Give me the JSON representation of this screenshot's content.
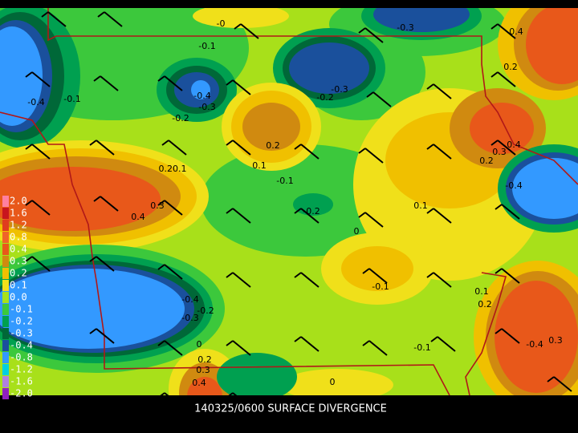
{
  "title": "140325/0600 SURFACE DIVERGENCE",
  "legend": [
    {
      "label": "2.0",
      "color": "#ff7f9f"
    },
    {
      "label": "1.6",
      "color": "#c8141e"
    },
    {
      "label": "1.2",
      "color": "#e03c1e"
    },
    {
      "label": "0.8",
      "color": "#f06428"
    },
    {
      "label": "0.4",
      "color": "#e8581a"
    },
    {
      "label": "0.3",
      "color": "#d08a10"
    },
    {
      "label": "0.2",
      "color": "#f0c000"
    },
    {
      "label": "0.1",
      "color": "#f0e01a"
    },
    {
      "label": "0.0",
      "color": "#a8e01a"
    },
    {
      "label": "-0.1",
      "color": "#3cc83c"
    },
    {
      "label": "-0.2",
      "color": "#00a050"
    },
    {
      "label": "-0.3",
      "color": "#006838"
    },
    {
      "label": "-0.4",
      "color": "#1a509c"
    },
    {
      "label": "-0.8",
      "color": "#3399ff"
    },
    {
      "label": "-1.2",
      "color": "#00d0e0"
    },
    {
      "label": "-1.6",
      "color": "#b080e0"
    },
    {
      "label": "-2.0",
      "color": "#9020c0"
    }
  ],
  "contour_labels": [
    "-0.3",
    "0.4",
    "-0.1",
    "0.2",
    "-0.4",
    "-0.1",
    "-0.4",
    "-0.3",
    "-0.3",
    "-0.2",
    "-0.2",
    "0.2",
    "0.1",
    "0.20.1",
    "-0.1",
    "-0.2",
    "0.4",
    "0.3",
    "0",
    "0.1",
    "-0.1",
    "0.3",
    "0.4",
    "0.2",
    "-0.4",
    "-0.3",
    "-0.2",
    "0.1",
    "0.2",
    "-0.4",
    "0.3",
    "-0.1",
    "0",
    "0.2",
    "0.3",
    "0.4",
    "0",
    "-0.4",
    "-0"
  ]
}
